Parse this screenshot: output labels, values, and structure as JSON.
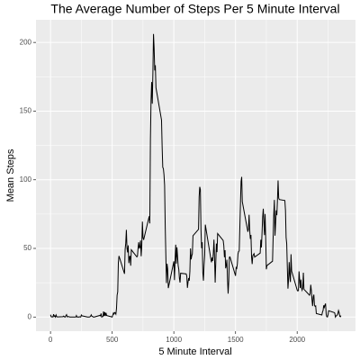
{
  "chart_data": {
    "type": "line",
    "title": "The Average Number of Steps Per 5 Minute Interval",
    "x_label": "5 Minute Interval",
    "y_label": "Mean Steps",
    "color": "#000000",
    "grid": true,
    "xlim": [
      -117.75,
      2472.75
    ],
    "ylim": [
      -10.3,
      216.5
    ],
    "xticks": [
      0,
      500,
      1000,
      1500,
      2000
    ],
    "yticks": [
      0,
      50,
      100,
      150,
      200
    ],
    "xminor": [
      250,
      750,
      1250,
      1750,
      2250
    ],
    "yminor": [
      25,
      75,
      125,
      175
    ],
    "x": [
      0,
      5,
      10,
      15,
      20,
      25,
      30,
      35,
      40,
      45,
      50,
      55,
      100,
      105,
      110,
      115,
      120,
      125,
      130,
      135,
      140,
      145,
      150,
      155,
      200,
      205,
      210,
      215,
      220,
      225,
      230,
      235,
      240,
      245,
      250,
      255,
      300,
      305,
      310,
      315,
      320,
      325,
      330,
      335,
      340,
      345,
      350,
      355,
      400,
      405,
      410,
      415,
      420,
      425,
      430,
      435,
      440,
      445,
      450,
      455,
      500,
      505,
      510,
      515,
      520,
      525,
      530,
      535,
      540,
      545,
      550,
      555,
      600,
      605,
      610,
      615,
      620,
      625,
      630,
      635,
      640,
      645,
      650,
      655,
      700,
      705,
      710,
      715,
      720,
      725,
      730,
      735,
      740,
      745,
      750,
      755,
      800,
      805,
      810,
      815,
      820,
      825,
      830,
      835,
      840,
      845,
      850,
      855,
      900,
      905,
      910,
      915,
      920,
      925,
      930,
      935,
      940,
      945,
      950,
      955,
      1000,
      1005,
      1010,
      1015,
      1020,
      1025,
      1030,
      1035,
      1040,
      1045,
      1050,
      1055,
      1100,
      1105,
      1110,
      1115,
      1120,
      1125,
      1130,
      1135,
      1140,
      1145,
      1150,
      1155,
      1200,
      1205,
      1210,
      1215,
      1220,
      1225,
      1230,
      1235,
      1240,
      1245,
      1250,
      1255,
      1300,
      1305,
      1310,
      1315,
      1320,
      1325,
      1330,
      1335,
      1340,
      1345,
      1350,
      1355,
      1400,
      1405,
      1410,
      1415,
      1420,
      1425,
      1430,
      1435,
      1440,
      1445,
      1450,
      1455,
      1500,
      1505,
      1510,
      1515,
      1520,
      1525,
      1530,
      1535,
      1540,
      1545,
      1550,
      1555,
      1600,
      1605,
      1610,
      1615,
      1620,
      1625,
      1630,
      1635,
      1640,
      1645,
      1650,
      1655,
      1700,
      1705,
      1710,
      1715,
      1720,
      1725,
      1730,
      1735,
      1740,
      1745,
      1750,
      1755,
      1800,
      1805,
      1810,
      1815,
      1820,
      1825,
      1830,
      1835,
      1840,
      1845,
      1850,
      1855,
      1900,
      1905,
      1910,
      1915,
      1920,
      1925,
      1930,
      1935,
      1940,
      1945,
      1950,
      1955,
      2000,
      2005,
      2010,
      2015,
      2020,
      2025,
      2030,
      2035,
      2040,
      2045,
      2050,
      2055,
      2100,
      2105,
      2110,
      2115,
      2120,
      2125,
      2130,
      2135,
      2140,
      2145,
      2150,
      2155,
      2200,
      2205,
      2210,
      2215,
      2220,
      2225,
      2230,
      2235,
      2240,
      2245,
      2250,
      2255,
      2300,
      2305,
      2310,
      2315,
      2320,
      2325,
      2330,
      2335,
      2340,
      2345,
      2350,
      2355
    ],
    "values": [
      1.7,
      0.3,
      0.1,
      0.2,
      0.1,
      2.1,
      0.5,
      0.9,
      0,
      1.5,
      0.3,
      0.1,
      0.3,
      0.7,
      0.2,
      0.3,
      0,
      1.1,
      1.8,
      0.2,
      0.2,
      0.4,
      0.3,
      0,
      0,
      0,
      1.1,
      0,
      0,
      0.1,
      0,
      0.2,
      0,
      0,
      1.5,
      0.9,
      0,
      0,
      0,
      0,
      0.2,
      0.6,
      1.6,
      0.6,
      0.5,
      0.1,
      0,
      0,
      1.2,
      0.9,
      2.6,
      0,
      0.3,
      0.4,
      4.1,
      0.7,
      3.5,
      0.8,
      3.1,
      1.1,
      0,
      1.6,
      3,
      2.2,
      3.3,
      3,
      2.1,
      6.1,
      16,
      18.3,
      39.5,
      44.5,
      31.5,
      49.3,
      53.8,
      63.5,
      50,
      47.1,
      52.2,
      39.3,
      44,
      44.2,
      37.4,
      49,
      43.8,
      44.4,
      50.5,
      54.5,
      49.9,
      51,
      55.7,
      44.3,
      52.3,
      69.5,
      57.8,
      56.2,
      73.4,
      68.2,
      129.4,
      157.5,
      171.2,
      155.4,
      177.3,
      206.2,
      195.9,
      179.6,
      183.4,
      167,
      143.5,
      124,
      109.1,
      108.1,
      103.7,
      96,
      66.2,
      45.2,
      24.8,
      38.8,
      35,
      21.1,
      40.6,
      26.9,
      42.4,
      52.7,
      38.9,
      50.8,
      44.3,
      37.4,
      34.7,
      28.3,
      25.1,
      31.9,
      31.4,
      29.7,
      21.3,
      25.5,
      28.4,
      26.5,
      33.4,
      50,
      42,
      44.6,
      46,
      59.2,
      63.9,
      87.7,
      94.8,
      92.8,
      63.4,
      50.2,
      54.5,
      32.4,
      26.5,
      37.7,
      45.1,
      67.3,
      42.3,
      39.9,
      43.3,
      40.9,
      46.2,
      56.4,
      42.8,
      25.1,
      39.9,
      53.5,
      47.3,
      60.8,
      55.8,
      52,
      43.6,
      48.7,
      35.5,
      37.5,
      41.8,
      27.5,
      17.1,
      26.1,
      43.6,
      43.8,
      30,
      36.1,
      35.5,
      38.8,
      46,
      47.8,
      48.1,
      65.3,
      82.9,
      98.7,
      102.1,
      84,
      62.1,
      64.1,
      74.5,
      63.2,
      56.9,
      59.8,
      43.9,
      38.6,
      44.7,
      45.5,
      46.2,
      43.7,
      46.6,
      56.3,
      50.7,
      61.2,
      72.7,
      78.9,
      68.9,
      59.7,
      75.1,
      56.5,
      34.8,
      37.5,
      40.7,
      58,
      74.7,
      85.3,
      59.3,
      67.8,
      77.7,
      74.2,
      85.3,
      99.5,
      86.6,
      85.6,
      84.9,
      77.8,
      58,
      53.4,
      36.3,
      20.7,
      27.4,
      40,
      30.2,
      25.5,
      45.7,
      33.5,
      19.6,
      19,
      19.3,
      33.3,
      26.8,
      21.2,
      27.3,
      21.3,
      19.6,
      21.3,
      32.3,
      20.2,
      15.9,
      17.2,
      23.5,
      19.2,
      12.5,
      8,
      14.7,
      16.3,
      8.7,
      7.8,
      8.1,
      2.6,
      1.5,
      3.7,
      4.8,
      8.5,
      7.1,
      8.7,
      9.8,
      2.2,
      0.3,
      0.1,
      1.6,
      4.6,
      3.3,
      2.8,
      0,
      0.8,
      1,
      1.6,
      2.6,
      4.7,
      3.3,
      0.6,
      0.2,
      1.1
    ]
  }
}
